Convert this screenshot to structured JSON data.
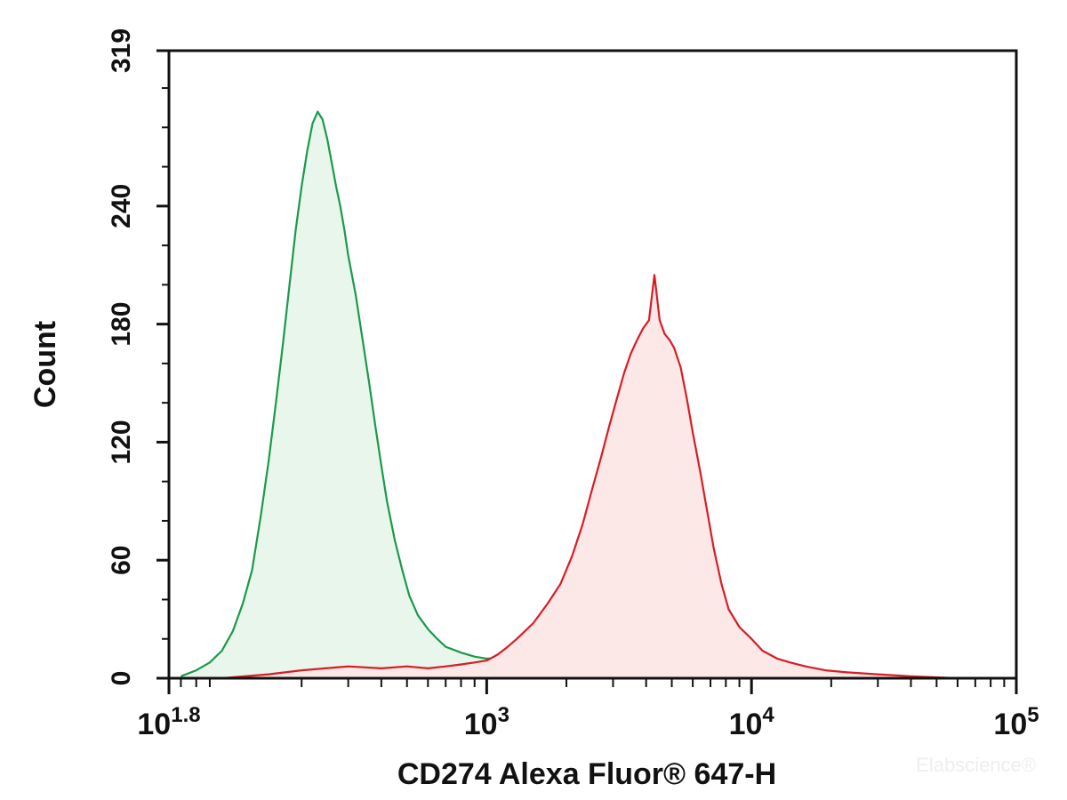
{
  "chart_data": {
    "type": "area",
    "title": "",
    "xlabel": "CD274 Alexa Fluor® 647-H",
    "ylabel": "Count",
    "xscale": "log",
    "xlim": [
      63.1,
      100000
    ],
    "ylim": [
      0,
      319
    ],
    "x_ticks": [
      {
        "value": 63.1,
        "base": "10",
        "exp": "1.8"
      },
      {
        "value": 1000,
        "base": "10",
        "exp": "3"
      },
      {
        "value": 10000,
        "base": "10",
        "exp": "4"
      },
      {
        "value": 100000,
        "base": "10",
        "exp": "5"
      }
    ],
    "y_ticks": [
      0,
      60,
      120,
      180,
      240,
      319
    ],
    "grid": false,
    "series": [
      {
        "color": "#1a9a4a",
        "fill": "#e8f6ec",
        "points": [
          [
            63,
            0
          ],
          [
            70,
            1
          ],
          [
            80,
            4
          ],
          [
            90,
            8
          ],
          [
            100,
            14
          ],
          [
            110,
            24
          ],
          [
            120,
            38
          ],
          [
            130,
            55
          ],
          [
            140,
            82
          ],
          [
            150,
            110
          ],
          [
            160,
            140
          ],
          [
            170,
            170
          ],
          [
            180,
            200
          ],
          [
            190,
            228
          ],
          [
            200,
            250
          ],
          [
            210,
            268
          ],
          [
            220,
            282
          ],
          [
            230,
            288
          ],
          [
            240,
            284
          ],
          [
            250,
            274
          ],
          [
            260,
            262
          ],
          [
            270,
            250
          ],
          [
            280,
            240
          ],
          [
            290,
            228
          ],
          [
            300,
            215
          ],
          [
            320,
            195
          ],
          [
            340,
            172
          ],
          [
            360,
            150
          ],
          [
            380,
            128
          ],
          [
            400,
            108
          ],
          [
            420,
            90
          ],
          [
            450,
            70
          ],
          [
            480,
            55
          ],
          [
            510,
            42
          ],
          [
            550,
            32
          ],
          [
            600,
            25
          ],
          [
            650,
            20
          ],
          [
            700,
            16
          ],
          [
            800,
            13
          ],
          [
            900,
            11
          ],
          [
            1000,
            10
          ],
          [
            1100,
            10
          ],
          [
            1200,
            9
          ],
          [
            1400,
            8
          ],
          [
            1600,
            6
          ],
          [
            2000,
            5
          ],
          [
            2500,
            4
          ],
          [
            3000,
            3
          ],
          [
            4000,
            2
          ],
          [
            6000,
            1
          ],
          [
            10000,
            1
          ],
          [
            15000,
            0
          ]
        ]
      },
      {
        "color": "#d81c24",
        "fill": "#fde8e8",
        "points": [
          [
            100,
            0
          ],
          [
            150,
            2
          ],
          [
            200,
            4
          ],
          [
            300,
            6
          ],
          [
            400,
            5
          ],
          [
            500,
            6
          ],
          [
            600,
            5
          ],
          [
            700,
            6
          ],
          [
            800,
            7
          ],
          [
            900,
            8
          ],
          [
            1000,
            9
          ],
          [
            1100,
            12
          ],
          [
            1200,
            16
          ],
          [
            1300,
            20
          ],
          [
            1500,
            28
          ],
          [
            1700,
            38
          ],
          [
            1900,
            48
          ],
          [
            2100,
            62
          ],
          [
            2300,
            78
          ],
          [
            2500,
            96
          ],
          [
            2700,
            112
          ],
          [
            2900,
            128
          ],
          [
            3100,
            142
          ],
          [
            3300,
            155
          ],
          [
            3500,
            165
          ],
          [
            3700,
            172
          ],
          [
            3900,
            178
          ],
          [
            4100,
            182
          ],
          [
            4300,
            205
          ],
          [
            4500,
            182
          ],
          [
            4700,
            175
          ],
          [
            4900,
            172
          ],
          [
            5100,
            168
          ],
          [
            5400,
            158
          ],
          [
            5700,
            142
          ],
          [
            6000,
            125
          ],
          [
            6400,
            105
          ],
          [
            6800,
            85
          ],
          [
            7200,
            66
          ],
          [
            7700,
            48
          ],
          [
            8200,
            35
          ],
          [
            9000,
            26
          ],
          [
            10000,
            20
          ],
          [
            11000,
            14
          ],
          [
            12500,
            10
          ],
          [
            14000,
            8
          ],
          [
            16000,
            6
          ],
          [
            19000,
            4
          ],
          [
            23000,
            3
          ],
          [
            30000,
            2
          ],
          [
            40000,
            1
          ],
          [
            60000,
            0
          ]
        ]
      }
    ]
  },
  "watermark": "Elabscience®"
}
